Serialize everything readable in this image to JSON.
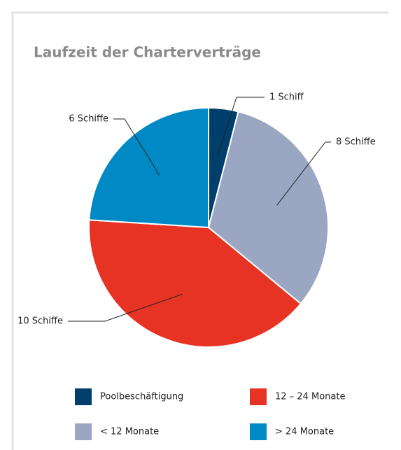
{
  "chart_data": {
    "type": "pie",
    "title": "Laufzeit der Charterverträge",
    "categories": [
      "Poolbeschäftigung",
      "< 12 Monate",
      "12 – 24 Monate",
      "> 24 Monate"
    ],
    "values": [
      1,
      8,
      10,
      6
    ],
    "value_labels": [
      "1 Schiff",
      "8 Schiffe",
      "10 Schiffe",
      "6 Schiffe"
    ],
    "colors": [
      "#003f6b",
      "#9aa6c2",
      "#e63323",
      "#0089c4"
    ]
  }
}
